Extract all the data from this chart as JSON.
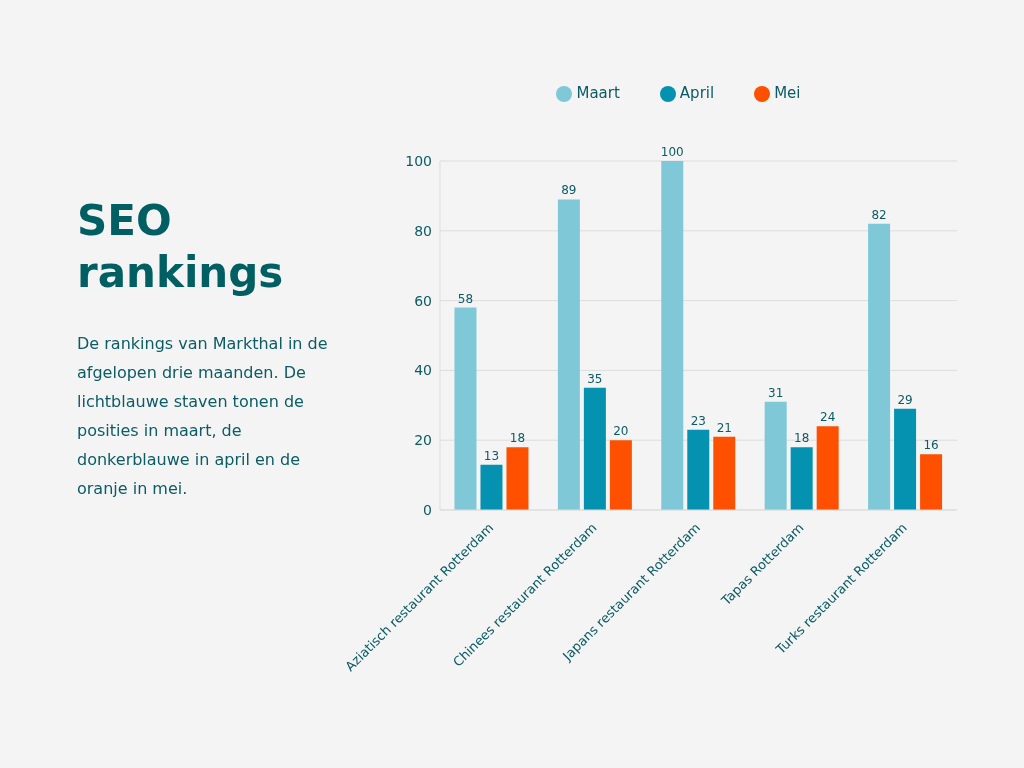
{
  "chart_data": {
    "type": "bar",
    "title": "SEO rankings",
    "subtitle": "De rankings van Markthal in de afgelopen drie maanden. De lichtblauwe staven tonen de posities in maart, de donkerblauwe in april en de oranje in mei.",
    "categories": [
      "Aziatisch restaurant Rotterdam",
      "Chinees restaurant Rotterdam",
      "Japans restaurant Rotterdam",
      "Tapas Rotterdam",
      "Turks restaurant Rotterdam"
    ],
    "series": [
      {
        "name": "Maart",
        "color": "#7ec8d8",
        "values": [
          58,
          89,
          100,
          31,
          82
        ]
      },
      {
        "name": "April",
        "color": "#0592b0",
        "values": [
          13,
          35,
          23,
          18,
          29
        ]
      },
      {
        "name": "Mei",
        "color": "#ff5000",
        "values": [
          18,
          20,
          21,
          24,
          16
        ]
      }
    ],
    "ylim": [
      0,
      100
    ],
    "yticks": [
      0,
      20,
      40,
      60,
      80,
      100
    ],
    "grid": "y",
    "legend": "top",
    "data_labels": true
  }
}
